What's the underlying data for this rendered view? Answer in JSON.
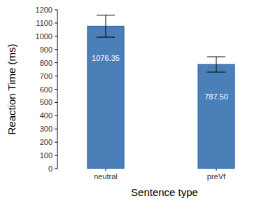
{
  "chart_data": {
    "type": "bar",
    "x_label": "Sentence type",
    "y_label": "Reaction Time (ms)",
    "categories": [
      "neutral",
      "preVf"
    ],
    "values": [
      1076.35,
      787.5
    ],
    "value_labels": [
      "1076.35",
      "787.50"
    ],
    "errors": [
      83,
      58
    ],
    "color": "#4a7fb8",
    "ylim": [
      0,
      1200
    ],
    "yticks": [
      0,
      100,
      200,
      300,
      400,
      500,
      600,
      700,
      800,
      900,
      1000,
      1100,
      1200
    ],
    "grid": false,
    "data_labels": true
  }
}
